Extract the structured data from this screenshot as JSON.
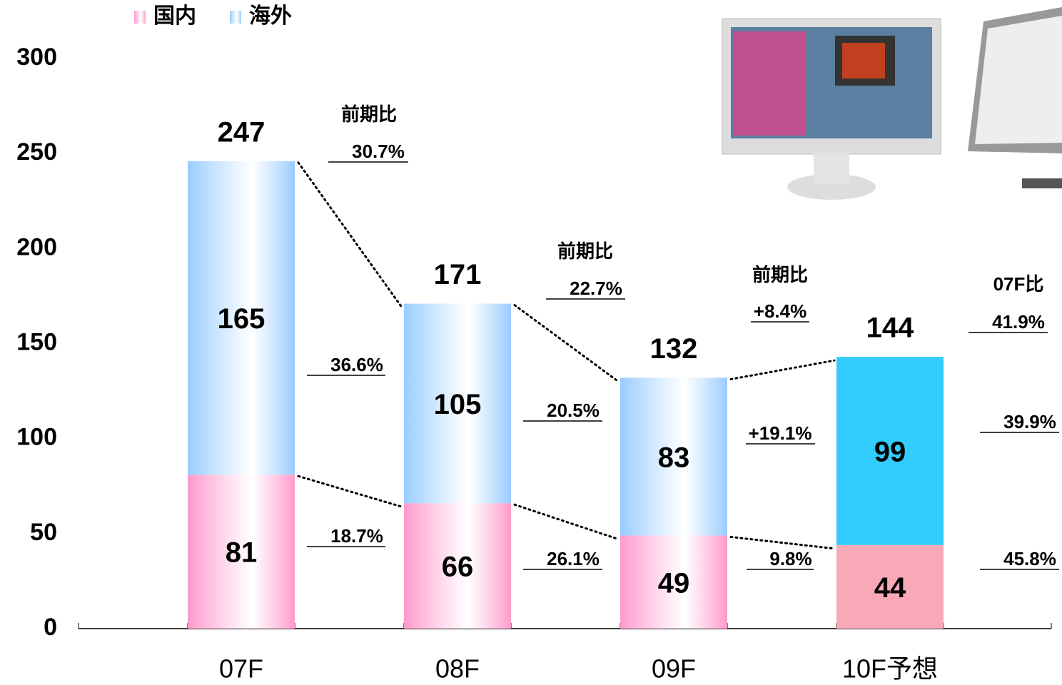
{
  "chart_data": {
    "type": "stacked_bar",
    "categories": [
      "07F",
      "08F",
      "09F",
      "10F予想"
    ],
    "series": [
      {
        "name": "国内",
        "color": "#ff99cc",
        "forecast_color": "#f9a8b8",
        "values": [
          81,
          66,
          49,
          44
        ]
      },
      {
        "name": "海外",
        "color": "#99ccff",
        "forecast_color": "#33ccff",
        "values": [
          165,
          105,
          83,
          99
        ]
      }
    ],
    "totals": [
      247,
      171,
      132,
      144
    ],
    "ylim": [
      0,
      300
    ],
    "yticks": [
      0,
      50,
      100,
      150,
      200,
      250,
      300
    ],
    "annotations": [
      "前期比",
      "30.7%",
      "36.6%",
      "18.7%",
      "前期比",
      "22.7%",
      "20.5%",
      "26.1%",
      "前期比",
      "+8.4%",
      "+19.1%",
      "9.8%",
      "07F比",
      "41.9%",
      "39.9%",
      "45.8%"
    ]
  }
}
